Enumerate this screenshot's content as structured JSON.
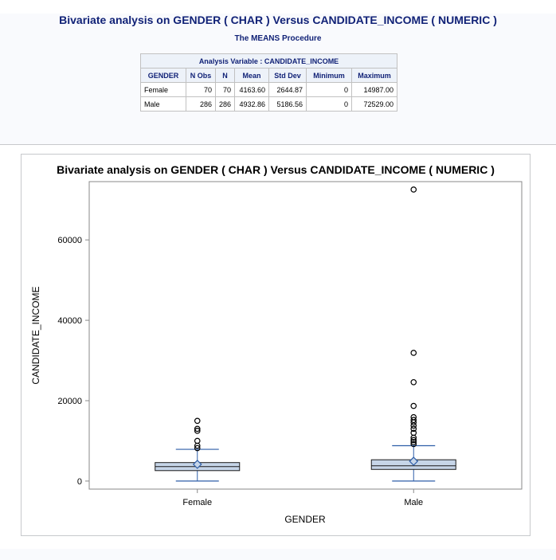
{
  "report": {
    "title": "Bivariate analysis on GENDER ( CHAR ) Versus CANDIDATE_INCOME ( NUMERIC )",
    "procedure": "The MEANS Procedure"
  },
  "means_table": {
    "caption": "Analysis Variable : CANDIDATE_INCOME",
    "headers": [
      "GENDER",
      "N Obs",
      "N",
      "Mean",
      "Std Dev",
      "Minimum",
      "Maximum"
    ],
    "rows": [
      [
        "Female",
        "70",
        "70",
        "4163.60",
        "2644.87",
        "0",
        "14987.00"
      ],
      [
        "Male",
        "286",
        "286",
        "4932.86",
        "5186.56",
        "0",
        "72529.00"
      ]
    ]
  },
  "chart_data": {
    "type": "box",
    "title": "Bivariate analysis on GENDER ( CHAR ) Versus CANDIDATE_INCOME ( NUMERIC )",
    "xlabel": "GENDER",
    "ylabel": "CANDIDATE_INCOME",
    "categories": [
      "Female",
      "Male"
    ],
    "ylim": [
      -2000,
      74500
    ],
    "yticks": [
      0,
      20000,
      40000,
      60000
    ],
    "ytick_labels": [
      "0",
      "20000",
      "40000",
      "60000"
    ],
    "boxes": [
      {
        "category": "Female",
        "whisker_low": 0,
        "q1": 2600,
        "median": 3600,
        "q3": 4600,
        "whisker_high": 7900,
        "mean": 4163.6,
        "outliers": [
          8200,
          8800,
          10000,
          12500,
          13000,
          14987
        ]
      },
      {
        "category": "Male",
        "whisker_low": 0,
        "q1": 2900,
        "median": 3800,
        "q3": 5300,
        "whisker_high": 8800,
        "mean": 4932.86,
        "outliers": [
          9200,
          9700,
          10200,
          10800,
          12000,
          13000,
          13800,
          14600,
          15200,
          15900,
          18700,
          24600,
          31900,
          72529
        ]
      }
    ],
    "colors": {
      "box_fill": "#c6d5e8",
      "box_stroke": "#1a1a1a",
      "whisker": "#2e5ea8",
      "mean_marker": "#2e5ea8",
      "outlier": "#000000",
      "axis": "#888888"
    },
    "grid": false,
    "legend": "none"
  }
}
